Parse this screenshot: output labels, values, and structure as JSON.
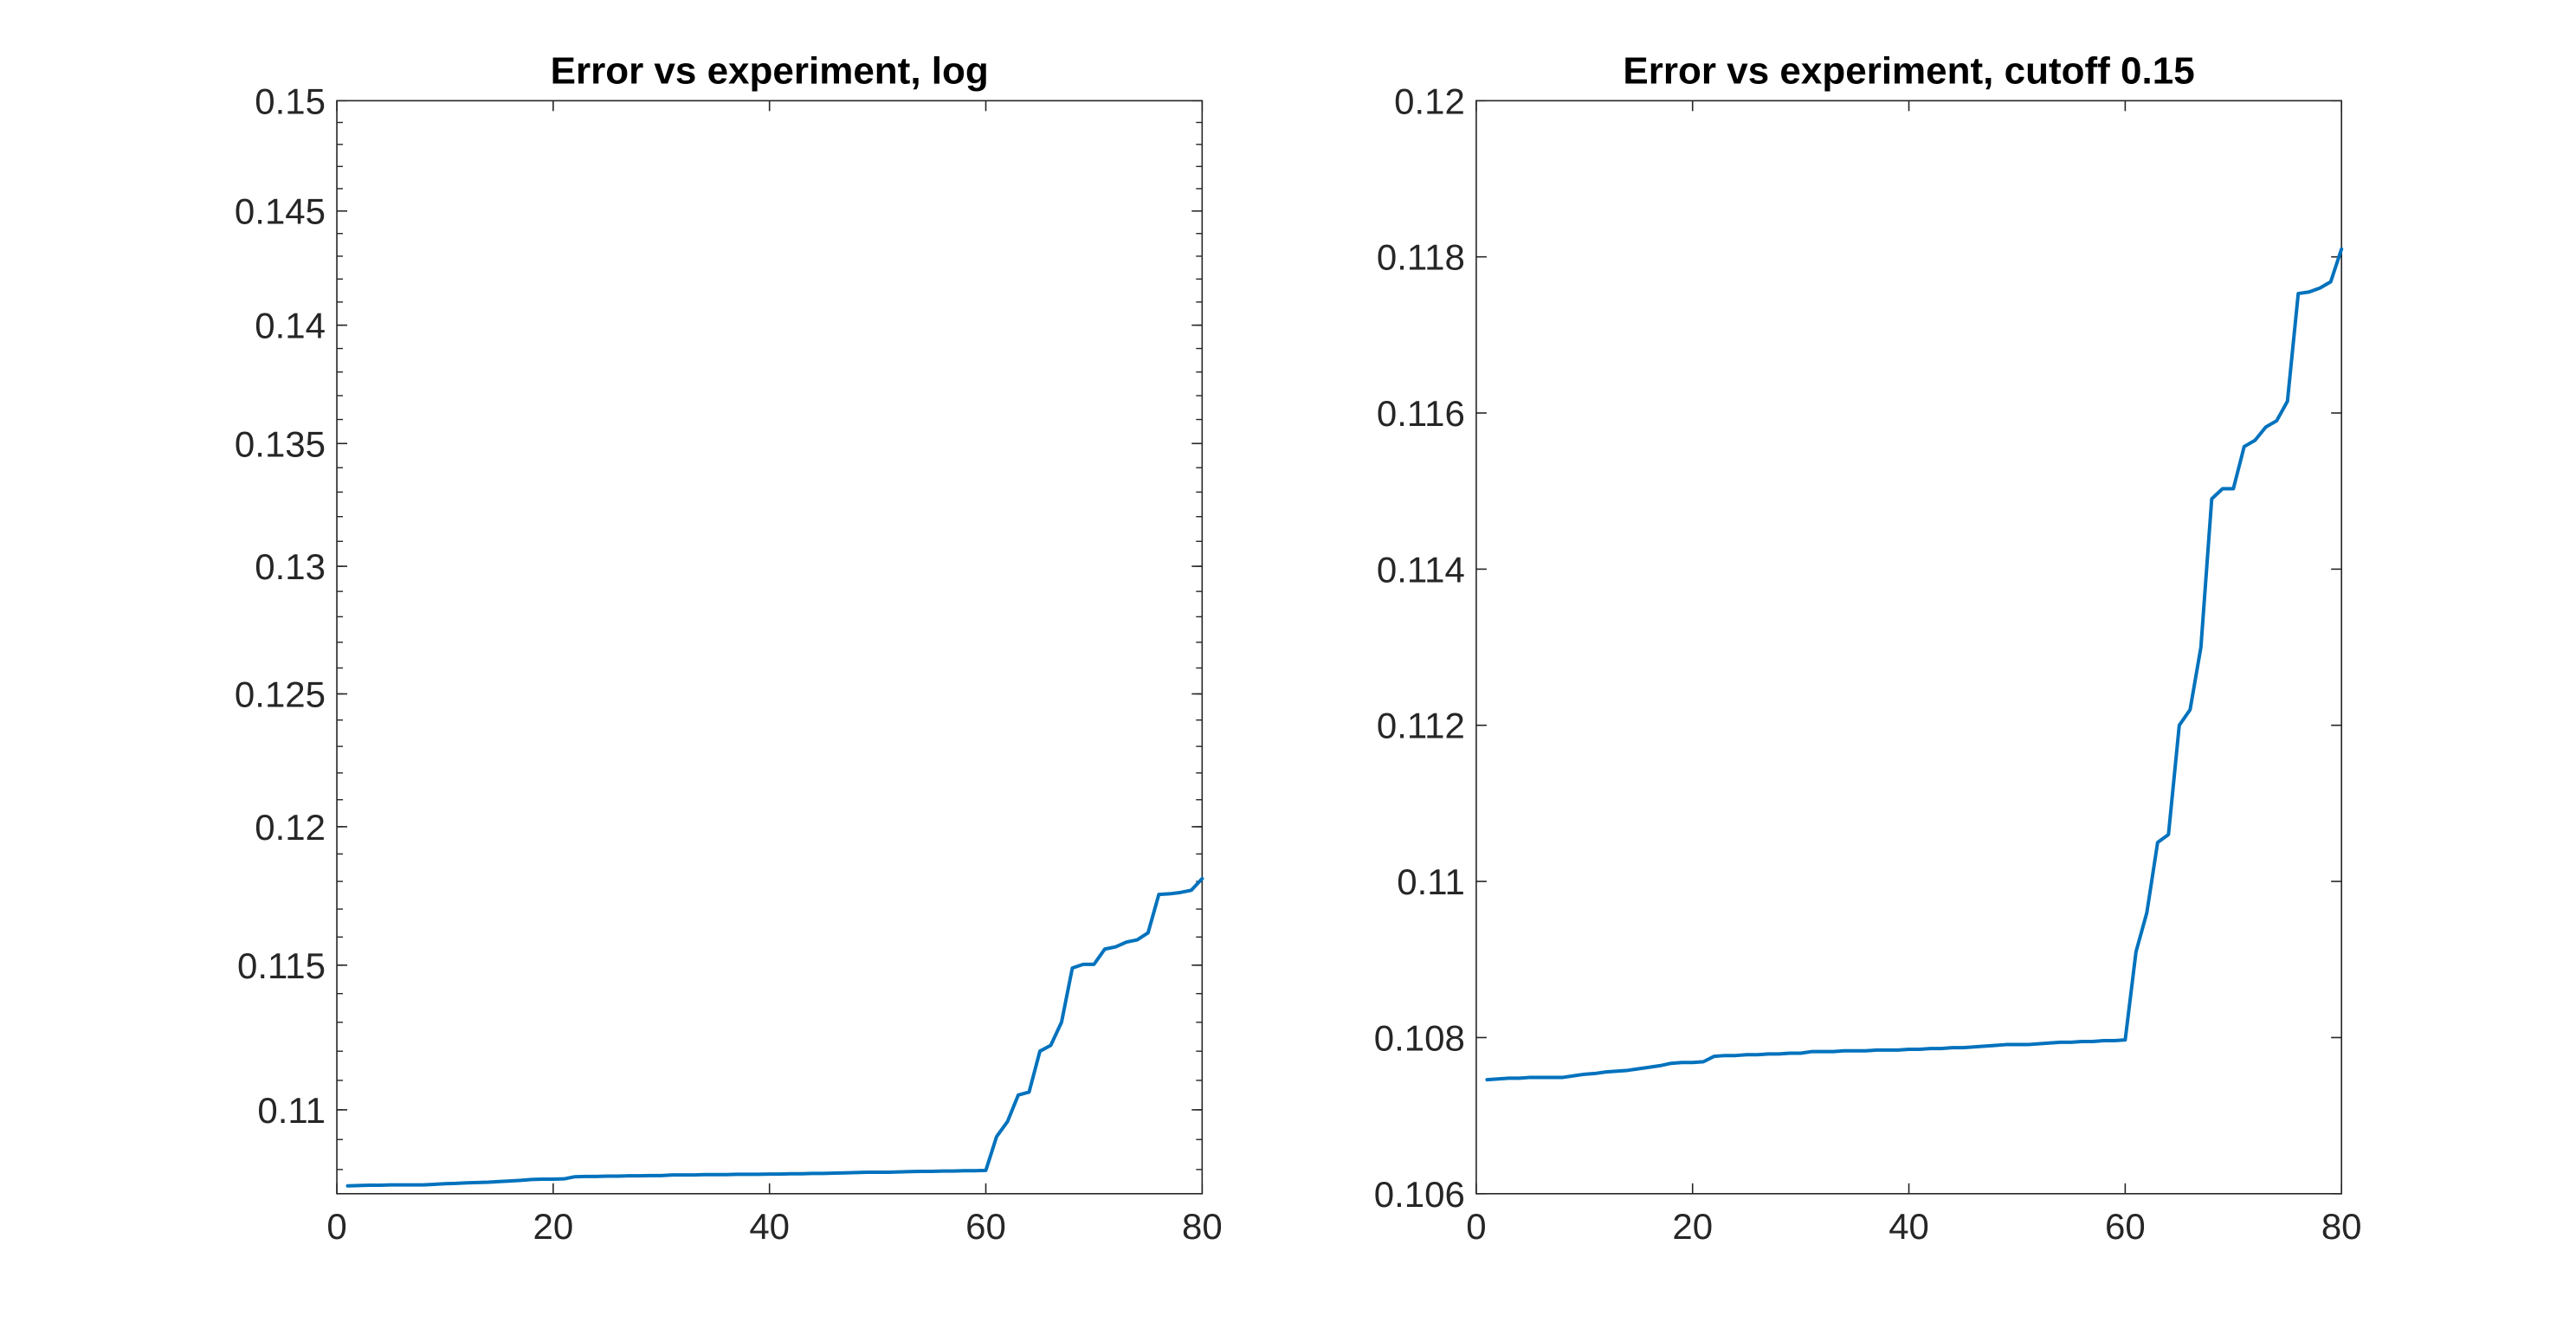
{
  "chart_data": [
    {
      "type": "line",
      "title": "Error vs experiment, log",
      "xlabel": "",
      "ylabel": "",
      "xlim": [
        0,
        80
      ],
      "ylim": [
        0.1072,
        0.15
      ],
      "yscale": "log",
      "grid": false,
      "color": "#0072BD",
      "xticks": [
        "0",
        "20",
        "40",
        "60",
        "80"
      ],
      "yticks": [
        "0.11",
        "0.115",
        "0.12",
        "0.125",
        "0.13",
        "0.135",
        "0.14",
        "0.145",
        "0.15"
      ],
      "series": [
        {
          "x": [
            1,
            2,
            3,
            4,
            5,
            6,
            7,
            8,
            9,
            10,
            11,
            12,
            13,
            14,
            15,
            16,
            17,
            18,
            19,
            20,
            21,
            22,
            23,
            24,
            25,
            26,
            27,
            28,
            29,
            30,
            31,
            32,
            33,
            34,
            35,
            36,
            37,
            38,
            39,
            40,
            41,
            42,
            43,
            44,
            45,
            46,
            47,
            48,
            49,
            50,
            51,
            52,
            53,
            54,
            55,
            56,
            57,
            58,
            59,
            60,
            61,
            62,
            63,
            64,
            65,
            66,
            67,
            68,
            69,
            70,
            71,
            72,
            73,
            74,
            75,
            76,
            77,
            78,
            79,
            80
          ],
          "y": [
            0.10746,
            0.10747,
            0.10748,
            0.10748,
            0.10749,
            0.10749,
            0.10749,
            0.10749,
            0.10751,
            0.10753,
            0.10754,
            0.10756,
            0.10757,
            0.10758,
            0.1076,
            0.10762,
            0.10764,
            0.10767,
            0.10768,
            0.10768,
            0.10769,
            0.10776,
            0.10777,
            0.10777,
            0.10778,
            0.10778,
            0.10779,
            0.10779,
            0.1078,
            0.1078,
            0.10782,
            0.10782,
            0.10782,
            0.10783,
            0.10783,
            0.10783,
            0.10784,
            0.10784,
            0.10784,
            0.10785,
            0.10785,
            0.10786,
            0.10786,
            0.10787,
            0.10787,
            0.10788,
            0.10789,
            0.1079,
            0.10791,
            0.10791,
            0.10791,
            0.10792,
            0.10793,
            0.10794,
            0.10794,
            0.10795,
            0.10795,
            0.10796,
            0.10796,
            0.10797,
            0.1091,
            0.1096,
            0.1105,
            0.1106,
            0.112,
            0.1122,
            0.113,
            0.1149,
            0.11503,
            0.11503,
            0.11557,
            0.11565,
            0.11582,
            0.1159,
            0.11615,
            0.11753,
            0.11755,
            0.1176,
            0.11768,
            0.1181
          ]
        }
      ]
    },
    {
      "type": "line",
      "title": "Error vs experiment, cutoff 0.15",
      "xlabel": "",
      "ylabel": "",
      "xlim": [
        0,
        80
      ],
      "ylim": [
        0.106,
        0.12
      ],
      "grid": false,
      "color": "#0072BD",
      "xticks": [
        "0",
        "20",
        "40",
        "60",
        "80"
      ],
      "yticks": [
        "0.106",
        "0.108",
        "0.11",
        "0.112",
        "0.114",
        "0.116",
        "0.118",
        "0.12"
      ],
      "series": [
        {
          "x": [
            1,
            2,
            3,
            4,
            5,
            6,
            7,
            8,
            9,
            10,
            11,
            12,
            13,
            14,
            15,
            16,
            17,
            18,
            19,
            20,
            21,
            22,
            23,
            24,
            25,
            26,
            27,
            28,
            29,
            30,
            31,
            32,
            33,
            34,
            35,
            36,
            37,
            38,
            39,
            40,
            41,
            42,
            43,
            44,
            45,
            46,
            47,
            48,
            49,
            50,
            51,
            52,
            53,
            54,
            55,
            56,
            57,
            58,
            59,
            60,
            61,
            62,
            63,
            64,
            65,
            66,
            67,
            68,
            69,
            70,
            71,
            72,
            73,
            74,
            75,
            76,
            77,
            78,
            79,
            80
          ],
          "y": [
            0.10746,
            0.10747,
            0.10748,
            0.10748,
            0.10749,
            0.10749,
            0.10749,
            0.10749,
            0.10751,
            0.10753,
            0.10754,
            0.10756,
            0.10757,
            0.10758,
            0.1076,
            0.10762,
            0.10764,
            0.10767,
            0.10768,
            0.10768,
            0.10769,
            0.10776,
            0.10777,
            0.10777,
            0.10778,
            0.10778,
            0.10779,
            0.10779,
            0.1078,
            0.1078,
            0.10782,
            0.10782,
            0.10782,
            0.10783,
            0.10783,
            0.10783,
            0.10784,
            0.10784,
            0.10784,
            0.10785,
            0.10785,
            0.10786,
            0.10786,
            0.10787,
            0.10787,
            0.10788,
            0.10789,
            0.1079,
            0.10791,
            0.10791,
            0.10791,
            0.10792,
            0.10793,
            0.10794,
            0.10794,
            0.10795,
            0.10795,
            0.10796,
            0.10796,
            0.10797,
            0.1091,
            0.1096,
            0.1105,
            0.1106,
            0.112,
            0.1122,
            0.113,
            0.1149,
            0.11503,
            0.11503,
            0.11557,
            0.11565,
            0.11582,
            0.1159,
            0.11615,
            0.11753,
            0.11755,
            0.1176,
            0.11768,
            0.1181
          ]
        }
      ]
    }
  ]
}
